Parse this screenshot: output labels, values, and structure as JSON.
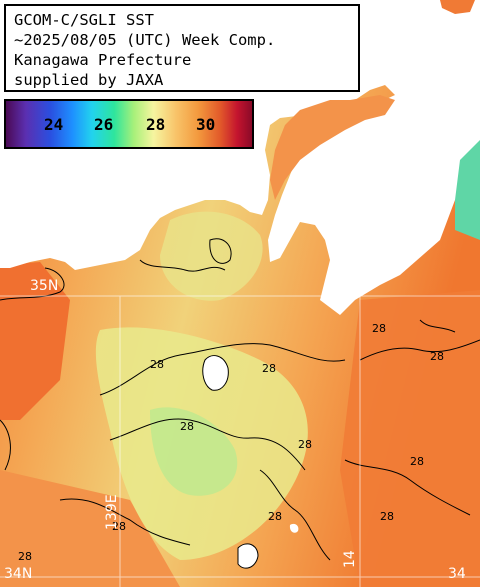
{
  "title": {
    "line1": "GCOM-C/SGLI SST",
    "line2": "~2025/08/05 (UTC) Week Comp.",
    "line3": "Kanagawa Prefecture",
    "line4": "supplied by JAXA"
  },
  "legend": {
    "ticks": [
      "24",
      "26",
      "28",
      "30"
    ]
  },
  "contour_labels": [
    "28",
    "28",
    "28",
    "28",
    "28",
    "28",
    "28",
    "28",
    "28",
    "28",
    "28"
  ],
  "grid_labels": {
    "left_lat": "35N",
    "bottom_left": "34N",
    "bottom_lon": "139E",
    "bottom_mid": "14",
    "bottom_right": "34"
  },
  "colors": {
    "land": "#ffffff",
    "sea_warm": "#f07a35",
    "sea_mid": "#f4a850",
    "sea_cool": "#e8e890",
    "sea_cooler": "#b8e890",
    "sea_cold": "#60d8a8",
    "contour": "#000000",
    "grid": "#ffffff"
  }
}
